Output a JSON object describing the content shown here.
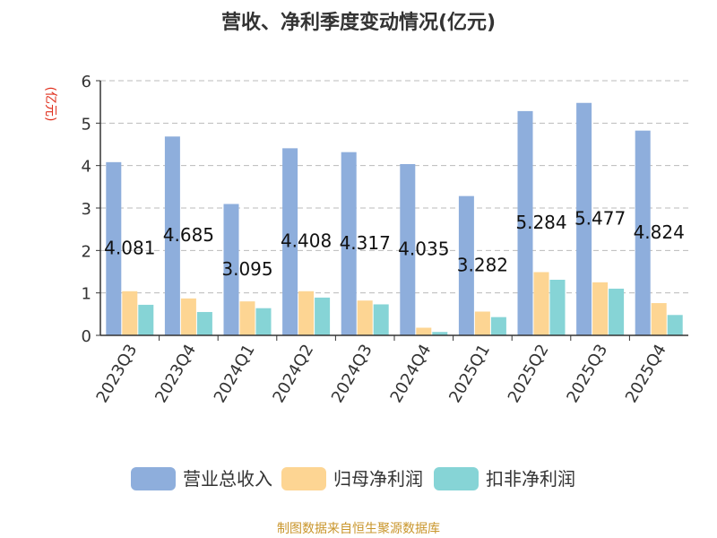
{
  "chart_data": {
    "type": "bar",
    "title": "营收、净利季度变动情况(亿元)",
    "ylabel": "(亿元)",
    "ylim": [
      0,
      6
    ],
    "yticks": [
      "0",
      "1",
      "2",
      "3",
      "4",
      "5",
      "6"
    ],
    "grid": true,
    "legend_position": "bottom",
    "categories": [
      "2023Q3",
      "2023Q4",
      "2024Q1",
      "2024Q2",
      "2024Q3",
      "2024Q4",
      "2025Q1",
      "2025Q2",
      "2025Q3",
      "2025Q4"
    ],
    "series": [
      {
        "name": "营业总收入",
        "color": "#8eaedc",
        "values": [
          4.081,
          4.685,
          3.095,
          4.408,
          4.317,
          4.035,
          3.282,
          5.284,
          5.477,
          4.824
        ]
      },
      {
        "name": "归母净利润",
        "color": "#fdd593",
        "values": [
          1.04,
          0.87,
          0.8,
          1.04,
          0.82,
          0.18,
          0.56,
          1.49,
          1.25,
          0.76
        ]
      },
      {
        "name": "扣非净利润",
        "color": "#86d4d6",
        "values": [
          0.72,
          0.55,
          0.64,
          0.89,
          0.73,
          0.08,
          0.43,
          1.31,
          1.1,
          0.48
        ]
      }
    ],
    "data_labels": [
      "4.081",
      "4.685",
      "3.095",
      "4.408",
      "4.317",
      "4.035",
      "3.282",
      "5.284",
      "5.477",
      "4.824"
    ]
  },
  "footer": {
    "source": "制图数据来自恒生聚源数据库"
  }
}
